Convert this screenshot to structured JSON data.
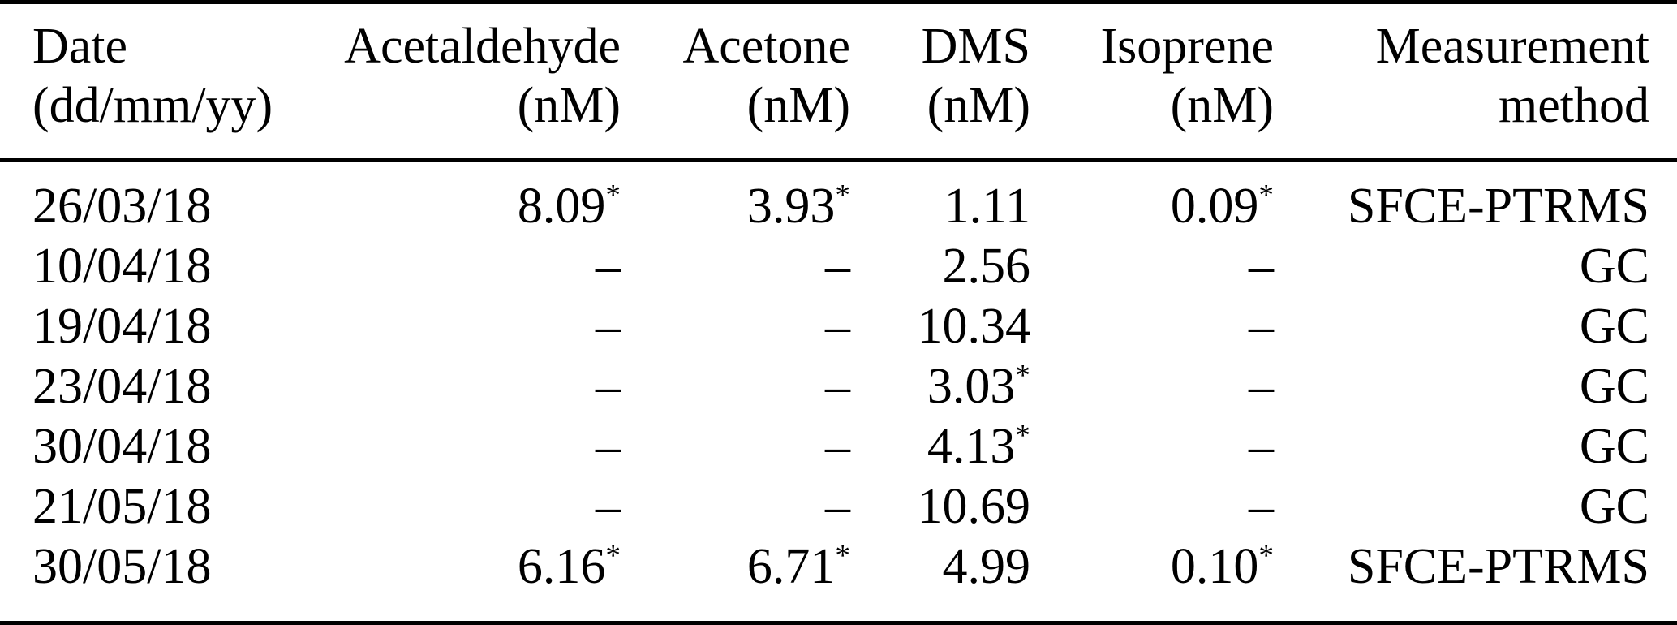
{
  "page": {
    "background_color": "#ffffff",
    "text_color": "#000000",
    "missing_value_marker": "–",
    "footnote_marker": "*"
  },
  "table": {
    "columns": [
      {
        "id": "date",
        "line1": "Date",
        "line2": "(dd/mm/yy)",
        "align": "left"
      },
      {
        "id": "acetaldehyde",
        "line1": "Acetaldehyde",
        "line2": "(nM)",
        "align": "right"
      },
      {
        "id": "acetone",
        "line1": "Acetone",
        "line2": "(nM)",
        "align": "right"
      },
      {
        "id": "dms",
        "line1": "DMS",
        "line2": "(nM)",
        "align": "right"
      },
      {
        "id": "isoprene",
        "line1": "Isoprene",
        "line2": "(nM)",
        "align": "right"
      },
      {
        "id": "method",
        "line1": "Measurement",
        "line2": "method",
        "align": "right"
      }
    ],
    "rows": [
      {
        "date": "26/03/18",
        "acetaldehyde": {
          "value": "8.09",
          "sup": "*"
        },
        "acetone": {
          "value": "3.93",
          "sup": "*"
        },
        "dms": {
          "value": "1.11",
          "sup": ""
        },
        "isoprene": {
          "value": "0.09",
          "sup": "*"
        },
        "method": "SFCE-PTRMS"
      },
      {
        "date": "10/04/18",
        "acetaldehyde": {
          "value": "–",
          "sup": ""
        },
        "acetone": {
          "value": "–",
          "sup": ""
        },
        "dms": {
          "value": "2.56",
          "sup": ""
        },
        "isoprene": {
          "value": "–",
          "sup": ""
        },
        "method": "GC"
      },
      {
        "date": "19/04/18",
        "acetaldehyde": {
          "value": "–",
          "sup": ""
        },
        "acetone": {
          "value": "–",
          "sup": ""
        },
        "dms": {
          "value": "10.34",
          "sup": ""
        },
        "isoprene": {
          "value": "–",
          "sup": ""
        },
        "method": "GC"
      },
      {
        "date": "23/04/18",
        "acetaldehyde": {
          "value": "–",
          "sup": ""
        },
        "acetone": {
          "value": "–",
          "sup": ""
        },
        "dms": {
          "value": "3.03",
          "sup": "*"
        },
        "isoprene": {
          "value": "–",
          "sup": ""
        },
        "method": "GC"
      },
      {
        "date": "30/04/18",
        "acetaldehyde": {
          "value": "–",
          "sup": ""
        },
        "acetone": {
          "value": "–",
          "sup": ""
        },
        "dms": {
          "value": "4.13",
          "sup": "*"
        },
        "isoprene": {
          "value": "–",
          "sup": ""
        },
        "method": "GC"
      },
      {
        "date": "21/05/18",
        "acetaldehyde": {
          "value": "–",
          "sup": ""
        },
        "acetone": {
          "value": "–",
          "sup": ""
        },
        "dms": {
          "value": "10.69",
          "sup": ""
        },
        "isoprene": {
          "value": "–",
          "sup": ""
        },
        "method": "GC"
      },
      {
        "date": "30/05/18",
        "acetaldehyde": {
          "value": "6.16",
          "sup": "*"
        },
        "acetone": {
          "value": "6.71",
          "sup": "*"
        },
        "dms": {
          "value": "4.99",
          "sup": ""
        },
        "isoprene": {
          "value": "0.10",
          "sup": "*"
        },
        "method": "SFCE-PTRMS"
      }
    ]
  },
  "chart_data": {
    "type": "table",
    "columns": [
      "Date (dd/mm/yy)",
      "Acetaldehyde (nM)",
      "Acetone (nM)",
      "DMS (nM)",
      "Isoprene (nM)",
      "Measurement method"
    ],
    "rows": [
      [
        "26/03/18",
        "8.09*",
        "3.93*",
        "1.11",
        "0.09*",
        "SFCE-PTRMS"
      ],
      [
        "10/04/18",
        "–",
        "–",
        "2.56",
        "–",
        "GC"
      ],
      [
        "19/04/18",
        "–",
        "–",
        "10.34",
        "–",
        "GC"
      ],
      [
        "23/04/18",
        "–",
        "–",
        "3.03*",
        "–",
        "GC"
      ],
      [
        "30/04/18",
        "–",
        "–",
        "4.13*",
        "–",
        "GC"
      ],
      [
        "21/05/18",
        "–",
        "–",
        "10.69",
        "–",
        "GC"
      ],
      [
        "30/05/18",
        "6.16*",
        "6.71*",
        "4.99",
        "0.10*",
        "SFCE-PTRMS"
      ]
    ]
  }
}
